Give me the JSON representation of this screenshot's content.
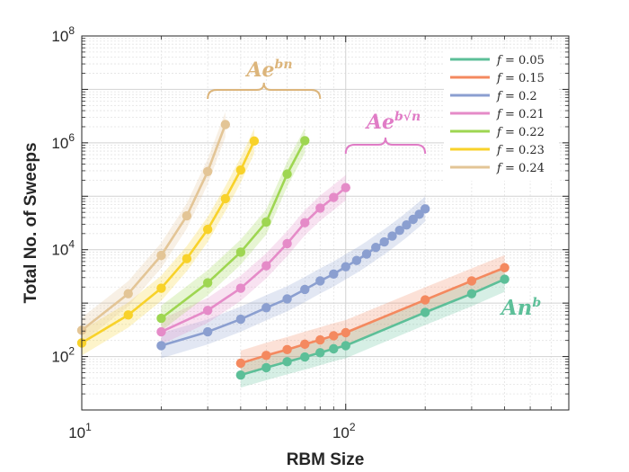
{
  "chart_data": {
    "type": "scatter",
    "title": "",
    "xlabel": "RBM Size",
    "ylabel": "Total No. of Sweeps",
    "xscale": "log",
    "yscale": "log",
    "xlim": [
      10,
      700
    ],
    "ylim": [
      10,
      100000000
    ],
    "xticks": [
      {
        "value": 10,
        "base": "10",
        "exp": "1"
      },
      {
        "value": 100,
        "base": "10",
        "exp": "2"
      }
    ],
    "yticks": [
      {
        "value": 100,
        "base": "10",
        "exp": "2"
      },
      {
        "value": 10000,
        "base": "10",
        "exp": "4"
      },
      {
        "value": 1000000,
        "base": "10",
        "exp": "6"
      },
      {
        "value": 100000000,
        "base": "10",
        "exp": "8"
      }
    ],
    "grid": true,
    "legend_position": "top-right",
    "series": [
      {
        "name": "f = 0.05",
        "legend_var": "f",
        "legend_eq": "= 0.05",
        "color": "#5cbf98",
        "x": [
          40,
          50,
          60,
          70,
          80,
          90,
          100,
          200,
          300,
          400
        ],
        "y": [
          45,
          62,
          80,
          98,
          118,
          140,
          160,
          670,
          1500,
          2800
        ]
      },
      {
        "name": "f = 0.15",
        "legend_var": "f",
        "legend_eq": "= 0.15",
        "color": "#f4895f",
        "x": [
          40,
          50,
          60,
          70,
          80,
          90,
          100,
          200,
          300,
          400
        ],
        "y": [
          75,
          105,
          135,
          170,
          205,
          245,
          280,
          1150,
          2600,
          4600
        ]
      },
      {
        "name": "f = 0.2",
        "legend_var": "f",
        "legend_eq": "= 0.2",
        "color": "#8b9fd0",
        "x": [
          20,
          30,
          40,
          50,
          60,
          70,
          80,
          90,
          100,
          110,
          120,
          130,
          140,
          150,
          160,
          170,
          180,
          190,
          200
        ],
        "y": [
          160,
          290,
          500,
          820,
          1200,
          1800,
          2600,
          3500,
          4800,
          6300,
          8300,
          11000,
          14000,
          18000,
          23000,
          29000,
          37000,
          46000,
          58000
        ]
      },
      {
        "name": "f = 0.21",
        "legend_var": "f",
        "legend_eq": "= 0.21",
        "color": "#e58bc8",
        "x": [
          20,
          30,
          40,
          50,
          60,
          70,
          80,
          90,
          100
        ],
        "y": [
          290,
          730,
          1900,
          5000,
          13000,
          32000,
          60000,
          95000,
          145000
        ]
      },
      {
        "name": "f = 0.22",
        "legend_var": "f",
        "legend_eq": "= 0.22",
        "color": "#9ed651",
        "x": [
          20,
          30,
          40,
          50,
          60,
          70
        ],
        "y": [
          520,
          2400,
          9000,
          33000,
          260000,
          1100000
        ]
      },
      {
        "name": "f = 0.23",
        "legend_var": "f",
        "legend_eq": "= 0.23",
        "color": "#f8d22a",
        "x": [
          10,
          15,
          20,
          25,
          30,
          35,
          40,
          45
        ],
        "y": [
          180,
          600,
          1900,
          6800,
          24000,
          90000,
          310000,
          1080000
        ]
      },
      {
        "name": "f = 0.24",
        "legend_var": "f",
        "legend_eq": "= 0.24",
        "color": "#e3c596",
        "x": [
          10,
          15,
          20,
          25,
          30,
          35
        ],
        "y": [
          310,
          1500,
          7800,
          43000,
          290000,
          2200000
        ]
      }
    ],
    "annotations": [
      {
        "id": "exp-linear",
        "base": "Ae",
        "sup": "bn",
        "color": "#dcb57b",
        "bracket_x": [
          30,
          80
        ]
      },
      {
        "id": "exp-sqrt",
        "base": "Ae",
        "sup": "b√n",
        "color": "#e07cc6",
        "bracket_x": [
          100,
          200
        ]
      },
      {
        "id": "power",
        "base": "An",
        "sup": "b",
        "color": "#5cbf98"
      }
    ]
  }
}
